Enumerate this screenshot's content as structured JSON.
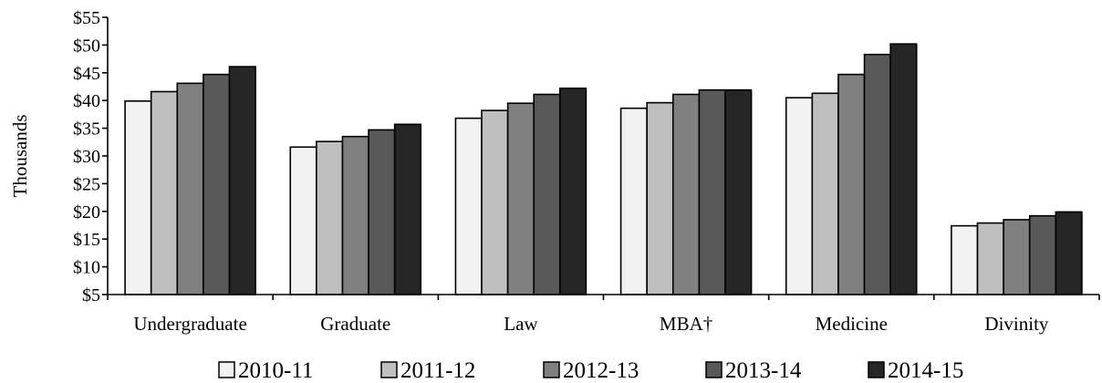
{
  "chart_data": {
    "type": "bar",
    "title": "",
    "xlabel": "",
    "ylabel": "Thousands",
    "ylim": [
      5,
      55
    ],
    "y_ticks": [
      5,
      10,
      15,
      20,
      25,
      30,
      35,
      40,
      45,
      50,
      55
    ],
    "y_tick_labels": [
      "$5",
      "$10",
      "$15",
      "$20",
      "$25",
      "$30",
      "$35",
      "$40",
      "$45",
      "$50",
      "$55"
    ],
    "categories": [
      "Undergraduate",
      "Graduate",
      "Law",
      "MBA†",
      "Medicine",
      "Divinity"
    ],
    "series": [
      {
        "name": "2010-11",
        "color": "#f2f2f2",
        "values": [
          39.9,
          31.6,
          36.8,
          38.6,
          40.5,
          17.4
        ]
      },
      {
        "name": "2011-12",
        "color": "#bfbfbf",
        "values": [
          41.6,
          32.6,
          38.2,
          39.6,
          41.3,
          17.9
        ]
      },
      {
        "name": "2012-13",
        "color": "#808080",
        "values": [
          43.1,
          33.5,
          39.5,
          41.1,
          44.7,
          18.5
        ]
      },
      {
        "name": "2013-14",
        "color": "#595959",
        "values": [
          44.7,
          34.7,
          41.1,
          41.9,
          48.3,
          19.2
        ]
      },
      {
        "name": "2014-15",
        "color": "#262626",
        "values": [
          46.1,
          35.7,
          42.2,
          41.9,
          50.2,
          19.9
        ]
      }
    ],
    "grid": false,
    "legend_position": "bottom"
  }
}
